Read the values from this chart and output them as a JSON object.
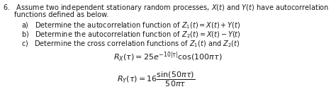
{
  "bg_color": "#ffffff",
  "text_color": "#1a1a1a",
  "fs_main": 7.0,
  "fs_items": 7.0,
  "fs_eq": 8.0,
  "line1": "6.   Assume two independent stationary random processes, $X(t)$ and $Y(t)$ have autocorrelation",
  "line2": "functions defined as below.",
  "item_a": "a)   Determine the autocorrelation function of $Z_1(t) = X(t) + Y(t)$",
  "item_b": "b)   Determine the autocorrelation function of $Z_2(t) = X(t) - Y(t)$",
  "item_c": "c)   Determine the cross correlation functions of $Z_1(t)$ and $Z_2(t)$",
  "eq1": "$R_X(\\tau) = 25e^{-10|\\tau|}\\mathrm{cos}(100\\pi\\tau)$",
  "eq2": "$R_Y(\\tau) = 16\\dfrac{\\sin(50\\pi\\tau)}{50\\pi\\tau}$"
}
